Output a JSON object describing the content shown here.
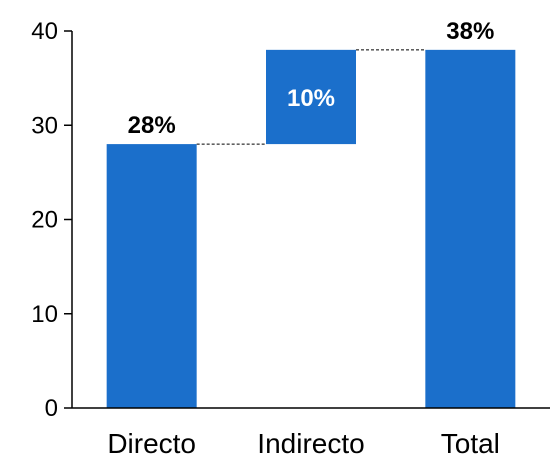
{
  "chart_data": {
    "type": "bar",
    "subtype": "waterfall",
    "categories": [
      "Directo",
      "Indirecto",
      "Total"
    ],
    "bars": [
      {
        "category": "Directo",
        "base": 0,
        "value": 28,
        "label": "28%"
      },
      {
        "category": "Indirecto",
        "base": 28,
        "value": 10,
        "label": "10%"
      },
      {
        "category": "Total",
        "base": 0,
        "value": 38,
        "label": "38%"
      }
    ],
    "title": "",
    "xlabel": "",
    "ylabel": "",
    "ylim": [
      0,
      40
    ],
    "yticks": [
      "0",
      "10",
      "20",
      "30",
      "40"
    ],
    "grid": false,
    "legend": "none",
    "colors": {
      "bar": "#1b6fcb",
      "connector": "#000000",
      "label_outside": "#000000",
      "label_inside": "#ffffff"
    }
  }
}
